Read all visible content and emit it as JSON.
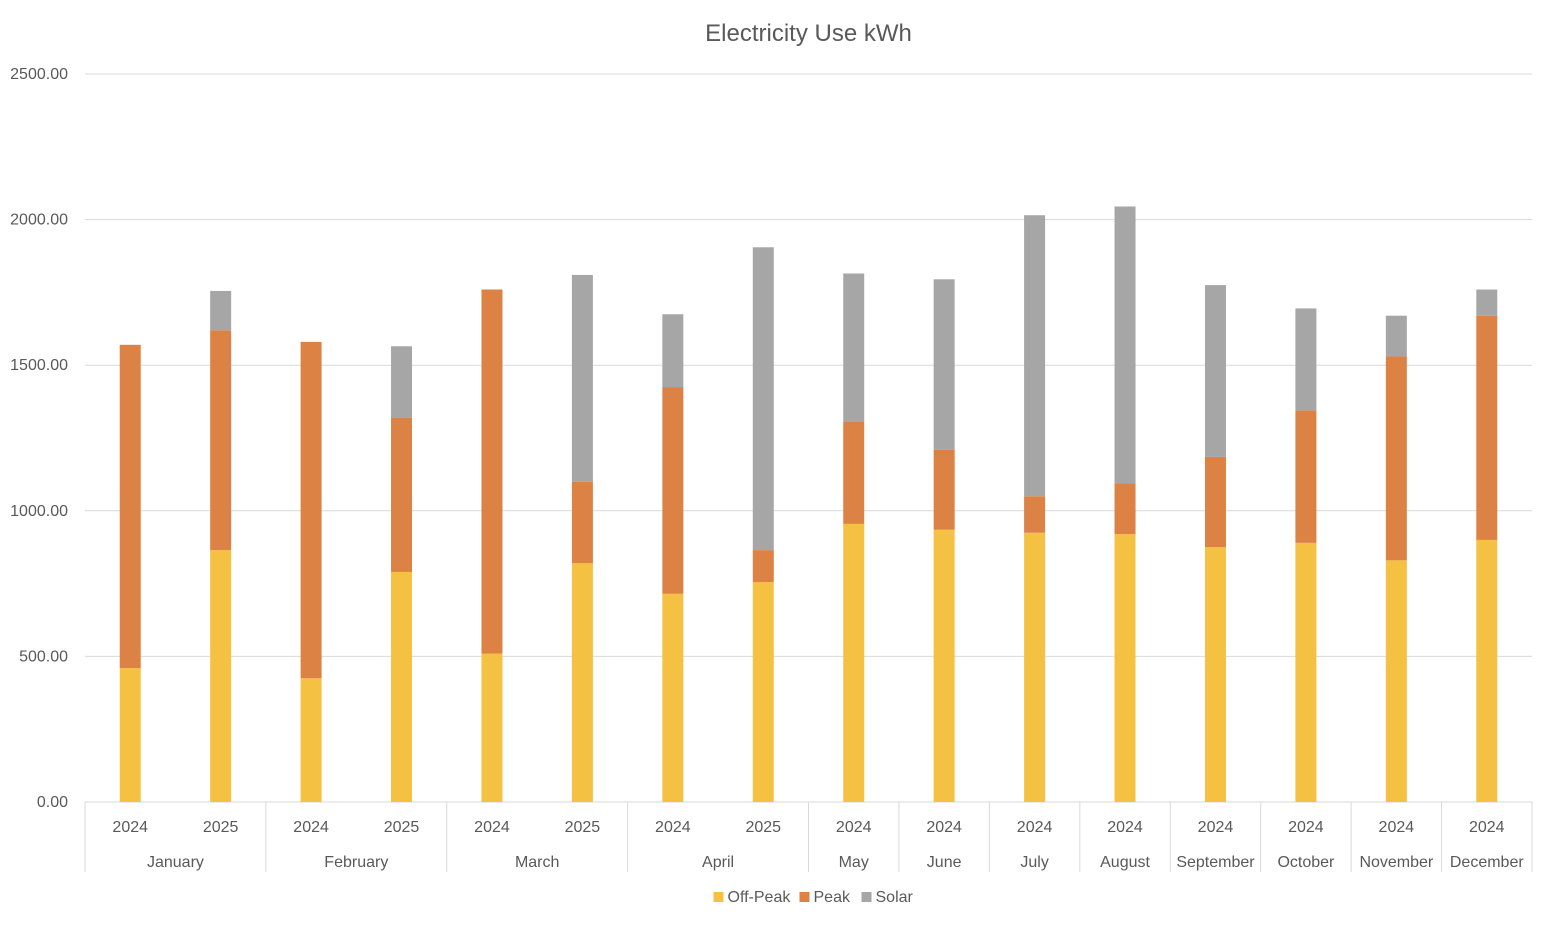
{
  "chart_data": {
    "type": "bar",
    "stacked": true,
    "title": "Electricity Use kWh",
    "xlabel": "",
    "ylabel": "",
    "ylim": [
      0,
      2500
    ],
    "y_ticks": [
      "0.00",
      "500.00",
      "1000.00",
      "1500.00",
      "2000.00",
      "2500.00"
    ],
    "grid": true,
    "legend": "bottom",
    "groups": [
      {
        "month": "January",
        "years": [
          "2024",
          "2025"
        ]
      },
      {
        "month": "February",
        "years": [
          "2024",
          "2025"
        ]
      },
      {
        "month": "March",
        "years": [
          "2024",
          "2025"
        ]
      },
      {
        "month": "April",
        "years": [
          "2024",
          "2025"
        ]
      },
      {
        "month": "May",
        "years": [
          "2024"
        ]
      },
      {
        "month": "June",
        "years": [
          "2024"
        ]
      },
      {
        "month": "July",
        "years": [
          "2024"
        ]
      },
      {
        "month": "August",
        "years": [
          "2024"
        ]
      },
      {
        "month": "September",
        "years": [
          "2024"
        ]
      },
      {
        "month": "October",
        "years": [
          "2024"
        ]
      },
      {
        "month": "November",
        "years": [
          "2024"
        ]
      },
      {
        "month": "December",
        "years": [
          "2024"
        ]
      }
    ],
    "series": [
      {
        "name": "Off-Peak",
        "color": "#F4C142",
        "values": [
          460,
          865,
          425,
          790,
          510,
          820,
          715,
          755,
          955,
          935,
          925,
          920,
          875,
          890,
          830,
          900
        ]
      },
      {
        "name": "Peak",
        "color": "#DC8244",
        "values": [
          1110,
          755,
          1155,
          530,
          1250,
          280,
          710,
          110,
          350,
          275,
          125,
          175,
          310,
          455,
          700,
          770
        ]
      },
      {
        "name": "Solar",
        "color": "#A6A6A6",
        "values": [
          0,
          135,
          0,
          245,
          0,
          710,
          250,
          1040,
          510,
          585,
          965,
          950,
          590,
          350,
          140,
          90
        ]
      }
    ]
  }
}
